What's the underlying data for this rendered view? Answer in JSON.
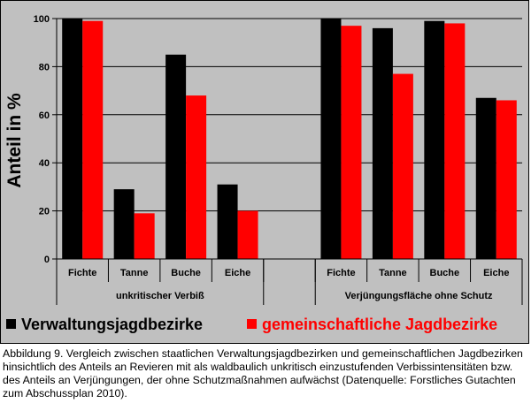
{
  "chart_data": {
    "type": "bar",
    "ylabel": "Anteil in %",
    "ylim": [
      0,
      100
    ],
    "yticks": [
      0,
      20,
      40,
      60,
      80,
      100
    ],
    "grid": true,
    "legend_position": "bottom",
    "categories": [
      "Fichte",
      "Tanne",
      "Buche",
      "Eiche",
      "",
      "Fichte",
      "Tanne",
      "Buche",
      "Eiche"
    ],
    "groups": [
      {
        "label": "unkritischer Verbiß",
        "categories": [
          "Fichte",
          "Tanne",
          "Buche",
          "Eiche"
        ]
      },
      {
        "label": "Verjüngungsfläche ohne Schutz",
        "categories": [
          "Fichte",
          "Tanne",
          "Buche",
          "Eiche"
        ]
      }
    ],
    "series": [
      {
        "name": "Verwaltungsjagdbezirke",
        "color": "#000000",
        "values": [
          100,
          29,
          85,
          31,
          null,
          100,
          96,
          99,
          67
        ]
      },
      {
        "name": "gemeinschaftliche Jagdbezirke",
        "color": "#ff0000",
        "values": [
          99,
          19,
          68,
          20,
          null,
          97,
          77,
          98,
          66
        ]
      }
    ],
    "colors": {
      "plot_background": "#c0c0c0",
      "gridline": "#000000"
    }
  },
  "caption": "Abbildung 9. Vergleich zwischen staatlichen Verwaltungsjagdbezirken und gemeinschaftlichen Jagdbezirken hinsichtlich des Anteils an Revieren mit als waldbaulich unkritisch einzustufenden Verbissintensitäten bzw. des Anteils an Verjüngungen, der ohne Schutzmaßnahmen aufwächst (Datenquelle: Forstliches Gutachten zum Abschussplan 2010)."
}
